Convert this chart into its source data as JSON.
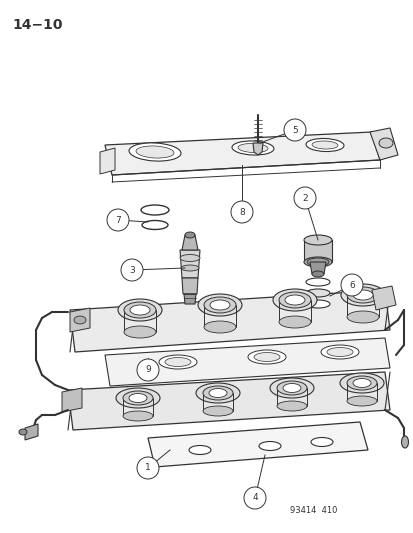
{
  "page_id": "14−10",
  "footer_text": "93414  410",
  "background_color": "#ffffff",
  "line_color": "#333333",
  "figsize": [
    4.14,
    5.33
  ],
  "dpi": 100,
  "page_id_fontsize": 11,
  "footer_fontsize": 6.5
}
